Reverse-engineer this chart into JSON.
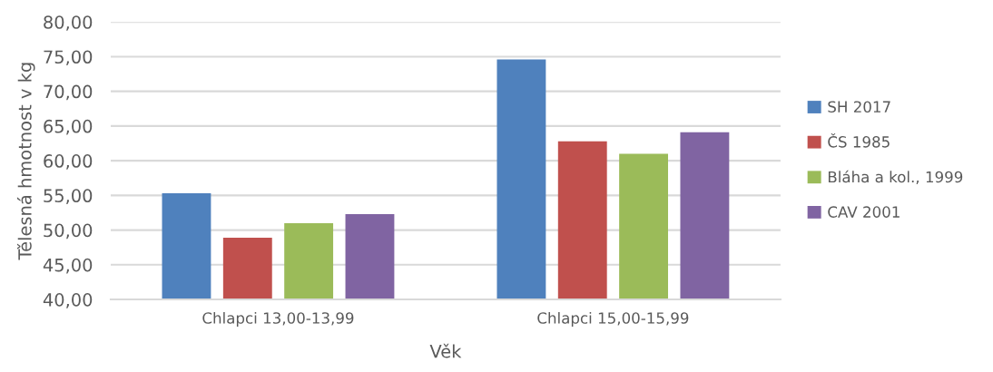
{
  "chart_data": {
    "type": "bar",
    "categories": [
      "Chlapci 13,00-13,99",
      "Chlapci 15,00-15,99"
    ],
    "series": [
      {
        "name": "SH 2017",
        "color": "#4f81bd",
        "values": [
          55.3,
          74.6
        ]
      },
      {
        "name": "ČS 1985",
        "color": "#c0504d",
        "values": [
          48.9,
          62.8
        ]
      },
      {
        "name": "Bláha a kol., 1999",
        "color": "#9bbb59",
        "values": [
          51.0,
          61.0
        ]
      },
      {
        "name": "CAV 2001",
        "color": "#8064a2",
        "values": [
          52.3,
          64.1
        ]
      }
    ],
    "xlabel": "Věk",
    "ylabel": "Tělesná hmotnost v kg",
    "ylim": [
      40,
      80
    ],
    "yticks": [
      {
        "value": 40,
        "label": "40,00"
      },
      {
        "value": 45,
        "label": "45,00"
      },
      {
        "value": 50,
        "label": "50,00"
      },
      {
        "value": 55,
        "label": "55,00"
      },
      {
        "value": 60,
        "label": "60,00"
      },
      {
        "value": 65,
        "label": "65,00"
      },
      {
        "value": 70,
        "label": "70,00"
      },
      {
        "value": 75,
        "label": "75,00"
      },
      {
        "value": 80,
        "label": "80,00"
      }
    ],
    "grid": "y",
    "legend": "right"
  }
}
